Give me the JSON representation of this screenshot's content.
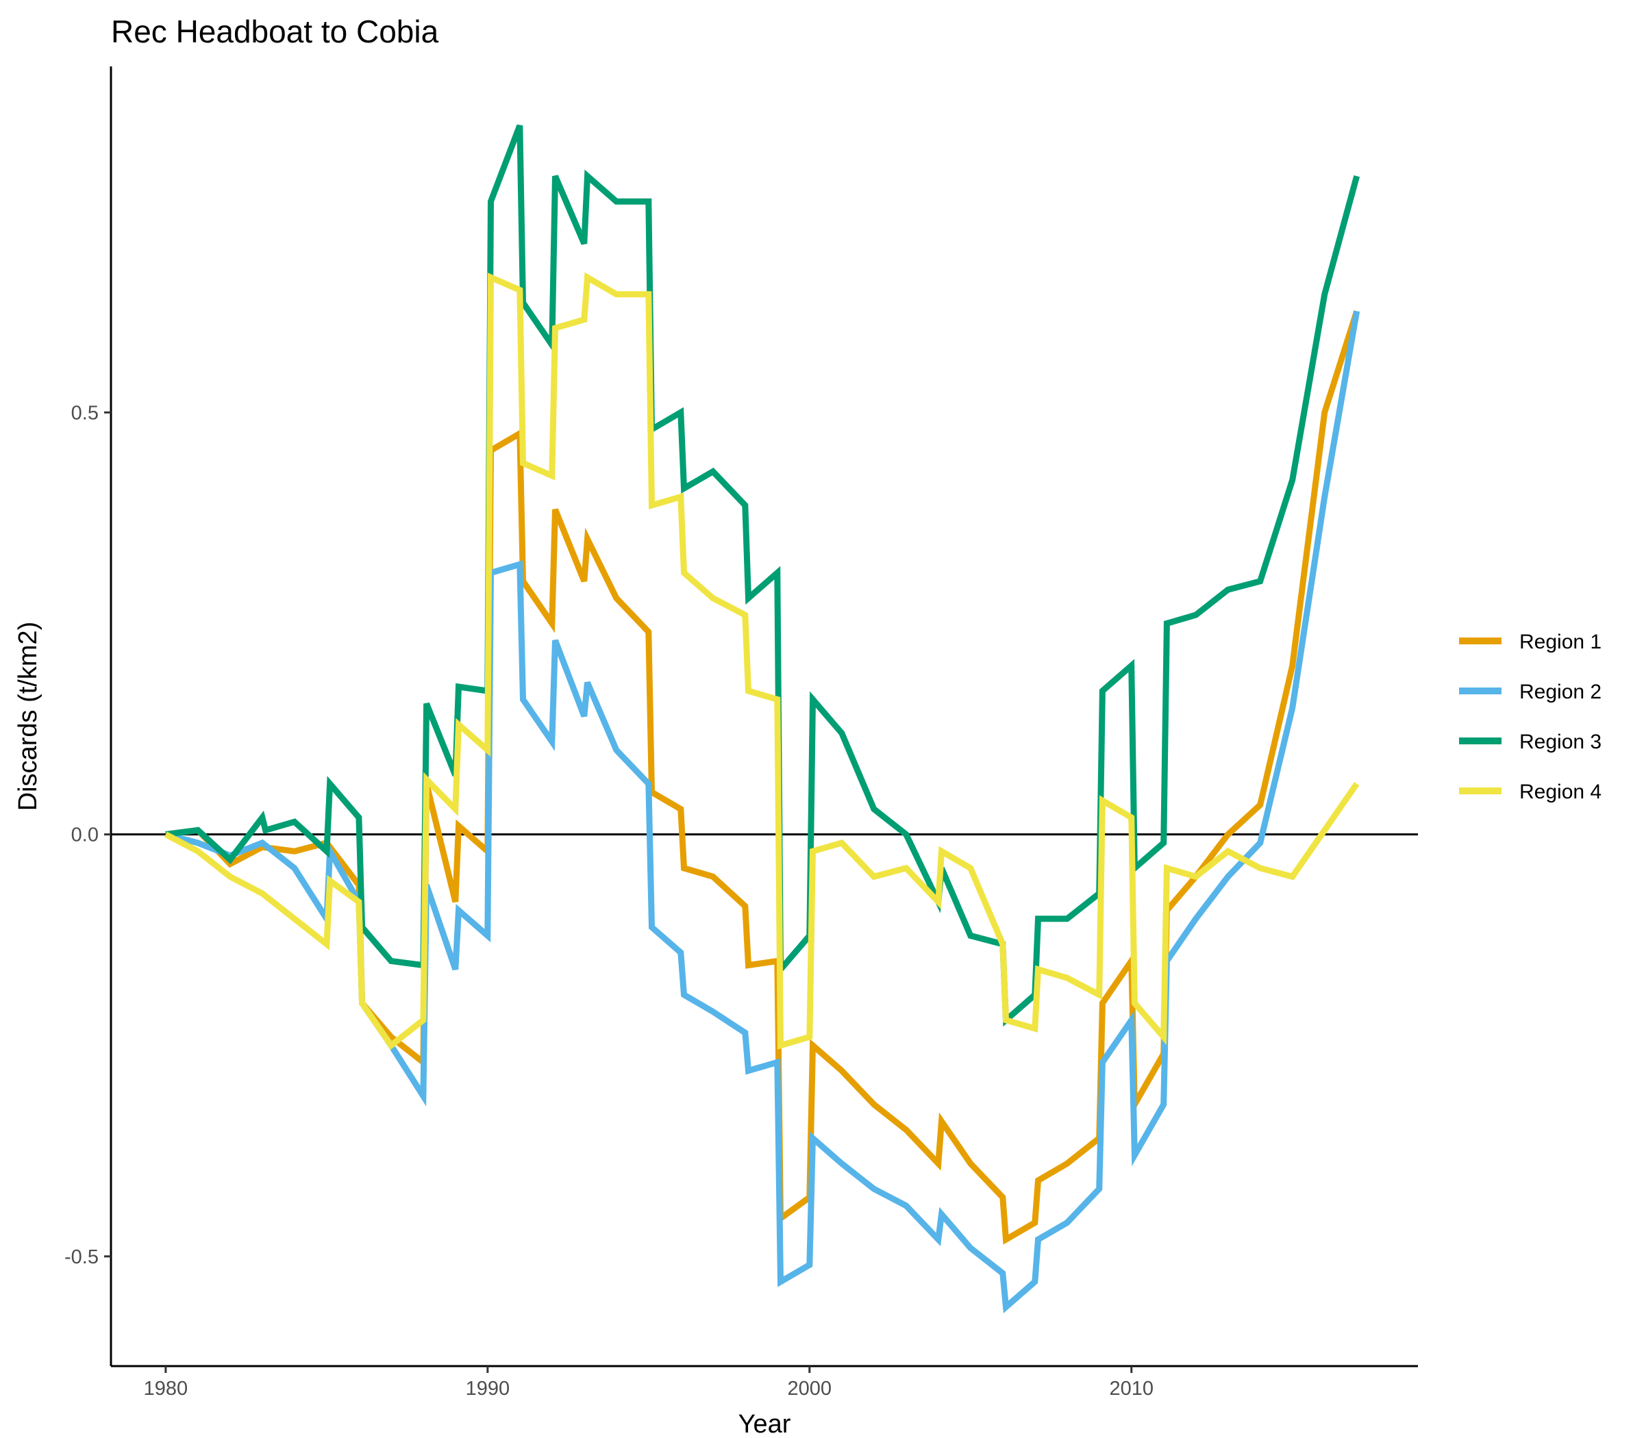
{
  "chart_data": {
    "type": "line",
    "title": "Rec Headboat to Cobia",
    "xlabel": "Year",
    "ylabel": "Discards (t/km2)",
    "xlim": [
      1978.3,
      2018.9
    ],
    "ylim": [
      -0.63,
      0.91
    ],
    "xticks": [
      1980,
      1990,
      2000,
      2010
    ],
    "xtick_labels": [
      "1980",
      "1990",
      "2000",
      "2010"
    ],
    "yticks": [
      -0.5,
      0.0,
      0.5
    ],
    "ytick_labels": [
      "-0.5",
      "0.0",
      "0.5"
    ],
    "zero_line": true,
    "grid": false,
    "legend_position": "right",
    "series": [
      {
        "name": "Region 1",
        "color": "#E69F00",
        "x": [
          1980,
          1981,
          1982,
          1983,
          1984,
          1985,
          1986,
          1986.1,
          1987,
          1988,
          1988.1,
          1989,
          1989.1,
          1990,
          1990.1,
          1991,
          1991.1,
          1992,
          1992.1,
          1993,
          1993.1,
          1994,
          1995,
          1995.1,
          1996,
          1996.1,
          1997,
          1998,
          1998.1,
          1999,
          1999.1,
          2000,
          2000.1,
          2001,
          2002,
          2003,
          2004,
          2004.1,
          2005,
          2006,
          2006.1,
          2007,
          2007.1,
          2008,
          2009,
          2009.1,
          2010,
          2010.1,
          2011,
          2011.1,
          2012,
          2013,
          2014,
          2015,
          2016,
          2017
        ],
        "y": [
          0.0,
          0.005,
          -0.035,
          -0.015,
          -0.02,
          -0.01,
          -0.06,
          -0.2,
          -0.24,
          -0.27,
          0.06,
          -0.08,
          0.01,
          -0.02,
          0.455,
          0.475,
          0.3,
          0.25,
          0.385,
          0.3,
          0.35,
          0.28,
          0.24,
          0.05,
          0.03,
          -0.04,
          -0.05,
          -0.085,
          -0.155,
          -0.15,
          -0.455,
          -0.43,
          -0.25,
          -0.28,
          -0.32,
          -0.35,
          -0.39,
          -0.34,
          -0.39,
          -0.43,
          -0.48,
          -0.46,
          -0.41,
          -0.39,
          -0.36,
          -0.2,
          -0.15,
          -0.32,
          -0.26,
          -0.09,
          -0.05,
          0.0,
          0.035,
          0.2,
          0.5,
          0.62
        ]
      },
      {
        "name": "Region 2",
        "color": "#56B4E9",
        "x": [
          1980,
          1981,
          1982,
          1983,
          1984,
          1985,
          1985.1,
          1986,
          1986.1,
          1987,
          1988,
          1988.1,
          1989,
          1989.1,
          1990,
          1990.1,
          1991,
          1991.1,
          1992,
          1992.1,
          1993,
          1993.1,
          1994,
          1995,
          1995.1,
          1996,
          1996.1,
          1997,
          1998,
          1998.1,
          1999,
          1999.1,
          2000,
          2000.1,
          2001,
          2002,
          2003,
          2004,
          2004.1,
          2005,
          2006,
          2006.1,
          2007,
          2007.1,
          2008,
          2009,
          2009.1,
          2010,
          2010.1,
          2011,
          2011.1,
          2012,
          2013,
          2014,
          2015,
          2016,
          2017
        ],
        "y": [
          0.0,
          -0.01,
          -0.025,
          -0.01,
          -0.04,
          -0.1,
          -0.02,
          -0.08,
          -0.2,
          -0.25,
          -0.31,
          -0.06,
          -0.16,
          -0.09,
          -0.12,
          0.31,
          0.32,
          0.16,
          0.11,
          0.23,
          0.14,
          0.18,
          0.1,
          0.06,
          -0.11,
          -0.14,
          -0.19,
          -0.21,
          -0.235,
          -0.28,
          -0.27,
          -0.53,
          -0.51,
          -0.36,
          -0.39,
          -0.42,
          -0.44,
          -0.48,
          -0.45,
          -0.49,
          -0.52,
          -0.56,
          -0.53,
          -0.48,
          -0.46,
          -0.42,
          -0.27,
          -0.22,
          -0.38,
          -0.32,
          -0.15,
          -0.1,
          -0.05,
          -0.01,
          0.15,
          0.4,
          0.62
        ]
      },
      {
        "name": "Region 3",
        "color": "#009E73",
        "x": [
          1980,
          1981,
          1982,
          1983,
          1983.1,
          1984,
          1985,
          1985.1,
          1986,
          1986.1,
          1987,
          1988,
          1988.1,
          1989,
          1989.1,
          1990,
          1990.1,
          1991,
          1991.1,
          1992,
          1992.1,
          1993,
          1993.1,
          1994,
          1995,
          1995.1,
          1996,
          1996.1,
          1997,
          1998,
          1998.1,
          1999,
          1999.1,
          2000,
          2000.1,
          2001,
          2002,
          2003,
          2004,
          2004.1,
          2005,
          2006,
          2006.1,
          2007,
          2007.1,
          2008,
          2009,
          2009.1,
          2010,
          2010.1,
          2011,
          2011.1,
          2012,
          2013,
          2014,
          2015,
          2016,
          2017
        ],
        "y": [
          0.0,
          0.005,
          -0.03,
          0.02,
          0.005,
          0.015,
          -0.02,
          0.06,
          0.02,
          -0.11,
          -0.15,
          -0.155,
          0.155,
          0.07,
          0.175,
          0.17,
          0.75,
          0.84,
          0.63,
          0.58,
          0.78,
          0.7,
          0.78,
          0.75,
          0.75,
          0.48,
          0.5,
          0.41,
          0.43,
          0.39,
          0.28,
          0.31,
          -0.16,
          -0.12,
          0.16,
          0.12,
          0.03,
          0.0,
          -0.08,
          -0.04,
          -0.12,
          -0.13,
          -0.22,
          -0.19,
          -0.1,
          -0.1,
          -0.07,
          0.17,
          0.2,
          -0.04,
          -0.01,
          0.25,
          0.26,
          0.29,
          0.3,
          0.42,
          0.64,
          0.78
        ]
      },
      {
        "name": "Region 4",
        "color": "#F0E442",
        "x": [
          1980,
          1981,
          1982,
          1983,
          1984,
          1985,
          1985.1,
          1986,
          1986.1,
          1987,
          1988,
          1988.1,
          1989,
          1989.1,
          1990,
          1990.1,
          1991,
          1991.1,
          1992,
          1992.1,
          1993,
          1993.1,
          1994,
          1995,
          1995.1,
          1996,
          1996.1,
          1997,
          1998,
          1998.1,
          1999,
          1999.1,
          2000,
          2000.1,
          2001,
          2002,
          2003,
          2004,
          2004.1,
          2005,
          2006,
          2006.1,
          2007,
          2007.1,
          2008,
          2009,
          2009.1,
          2010,
          2010.1,
          2011,
          2011.1,
          2012,
          2013,
          2014,
          2015,
          2016,
          2017
        ],
        "y": [
          0.0,
          -0.02,
          -0.05,
          -0.07,
          -0.1,
          -0.13,
          -0.055,
          -0.08,
          -0.2,
          -0.25,
          -0.22,
          0.065,
          0.03,
          0.13,
          0.1,
          0.66,
          0.645,
          0.44,
          0.425,
          0.6,
          0.61,
          0.66,
          0.64,
          0.64,
          0.39,
          0.4,
          0.31,
          0.28,
          0.26,
          0.17,
          0.16,
          -0.25,
          -0.24,
          -0.02,
          -0.01,
          -0.05,
          -0.04,
          -0.08,
          -0.02,
          -0.04,
          -0.13,
          -0.22,
          -0.23,
          -0.16,
          -0.17,
          -0.19,
          0.04,
          0.02,
          -0.2,
          -0.24,
          -0.04,
          -0.05,
          -0.02,
          -0.04,
          -0.05,
          0.005,
          0.06
        ]
      }
    ]
  }
}
